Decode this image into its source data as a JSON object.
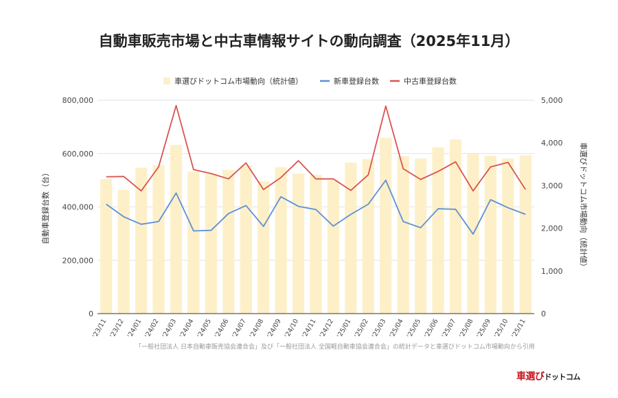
{
  "chart_data": {
    "type": "bar+line",
    "title": "自動車販売市場と中古車情報サイトの動向調査（2025年11月）",
    "categories": [
      "'23/11",
      "'23/12",
      "'24/01",
      "'24/02",
      "'24/03",
      "'24/04",
      "'24/05",
      "'24/06",
      "'24/07",
      "'24/08",
      "'24/09",
      "'24/10",
      "'24/11",
      "'24/12",
      "'25/01",
      "'25/02",
      "'25/03",
      "'25/04",
      "'25/05",
      "'25/06",
      "'25/07",
      "'25/08",
      "'25/09",
      "'25/10",
      "'25/11"
    ],
    "series": [
      {
        "name": "車選びドットコム市場動向（統計値）",
        "kind": "bar",
        "axis": "right",
        "color": "#fdf0c8",
        "values": [
          3150,
          2900,
          3420,
          3480,
          3950,
          3330,
          3280,
          3370,
          3470,
          3100,
          3430,
          3280,
          3250,
          3130,
          3540,
          3620,
          4120,
          3690,
          3630,
          3900,
          4080,
          3740,
          3700,
          3630,
          3710
        ]
      },
      {
        "name": "新車登録台数",
        "kind": "line",
        "axis": "left",
        "color": "#5b8fd9",
        "values": [
          410000,
          363000,
          335000,
          345000,
          452000,
          310000,
          312000,
          375000,
          405000,
          327000,
          438000,
          402000,
          390000,
          328000,
          372000,
          410000,
          500000,
          345000,
          322000,
          393000,
          391000,
          298000,
          427000,
          397000,
          372000
        ]
      },
      {
        "name": "中古車登録台数",
        "kind": "line",
        "axis": "left",
        "color": "#d9534f",
        "values": [
          513000,
          514000,
          460000,
          550000,
          780000,
          540000,
          525000,
          505000,
          565000,
          465000,
          510000,
          573000,
          505000,
          505000,
          462000,
          520000,
          778000,
          543000,
          503000,
          533000,
          569000,
          460000,
          550000,
          567000,
          465000
        ]
      }
    ],
    "ylabel": "自動車登録台数（台）",
    "y2label": "車選びドットコム市場動向（統計値）",
    "ylim": [
      0,
      800000
    ],
    "y2lim": [
      0,
      5000
    ],
    "yticks": [
      "0",
      "200,000",
      "400,000",
      "600,000",
      "800,000"
    ],
    "y2ticks": [
      "0",
      "1,000",
      "2,000",
      "3,000",
      "4,000",
      "5,000"
    ],
    "legend": "top-center",
    "grid": true
  },
  "source_note": "「一般社団法人 日本自動車販売協会連合会」及び「一般社団法人 全国軽自動車協会連合会」の統計データと車選びドットコム市場動向から引用",
  "brand": {
    "main": "車選び",
    "kana": "ドットコム"
  }
}
